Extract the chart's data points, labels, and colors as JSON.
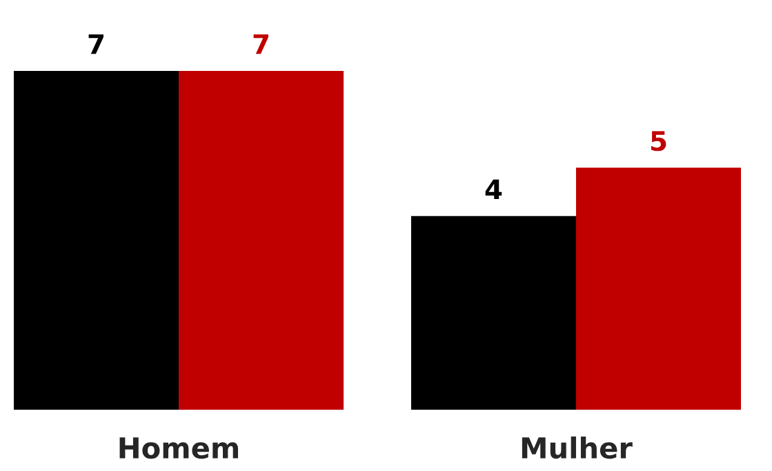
{
  "chart_data": {
    "type": "bar",
    "categories": [
      "Homem",
      "Mulher"
    ],
    "series": [
      {
        "color": "#000000",
        "values": [
          7,
          4
        ]
      },
      {
        "color": "#c00000",
        "values": [
          7,
          5
        ]
      }
    ],
    "data_labels": true,
    "grid": false,
    "legend": false
  }
}
